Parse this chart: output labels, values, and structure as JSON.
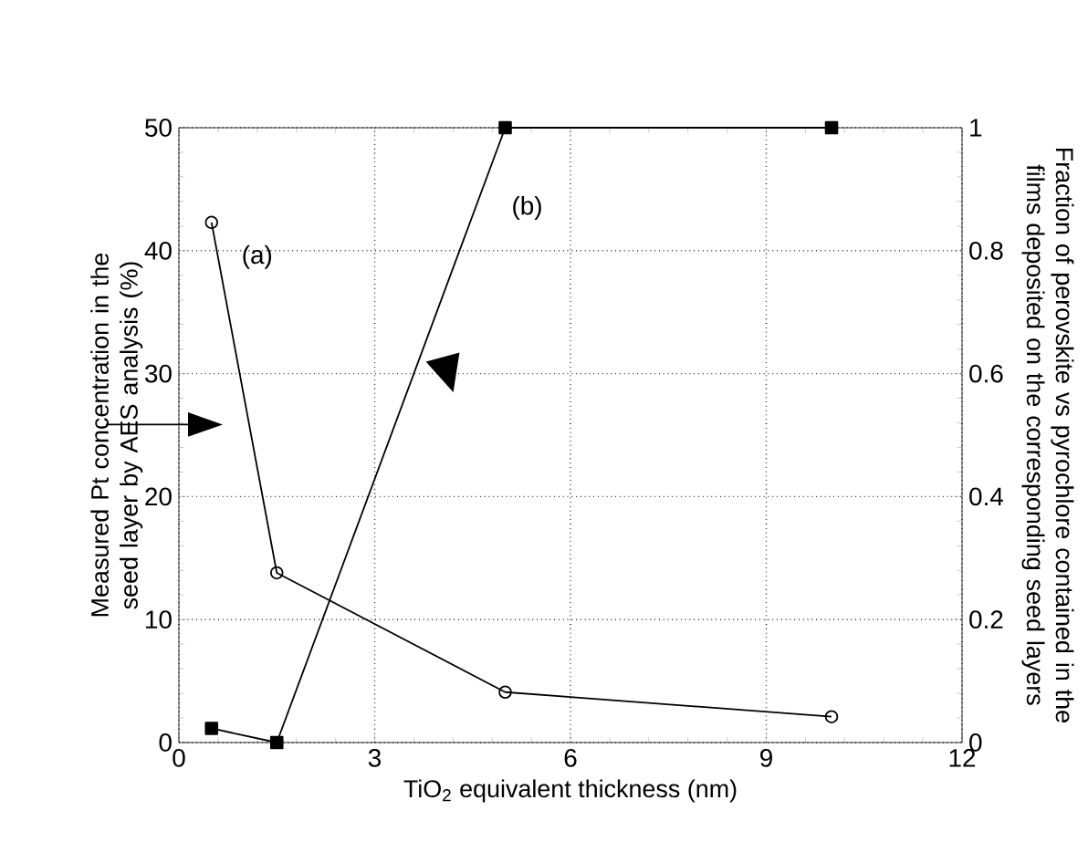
{
  "chart_data": {
    "type": "line",
    "xlabel": "TiO$_{2}$ equivalent thickness (nm)",
    "ylabel": "Measured Pt concentration in the seed layer by AES analysis (%)",
    "y2label": "Fraction of perovskite vs pyrochlore contained in the films deposited on the corresponding seed layers",
    "xlim": [
      0,
      12
    ],
    "xticks": [
      0,
      3,
      6,
      9,
      12
    ],
    "ylim": [
      0,
      50
    ],
    "yticks": [
      0,
      10,
      20,
      30,
      40,
      50
    ],
    "y2lim": [
      0,
      1
    ],
    "y2ticks": [
      0,
      0.2,
      0.4,
      0.6,
      0.8,
      1
    ],
    "grid": true,
    "line_style": "solid",
    "series": [
      {
        "name": "(a)",
        "color": "#000000",
        "marker": "circle",
        "x": [
          0.5,
          1.5,
          5,
          10
        ],
        "values": [
          42.3,
          13.8,
          4.1,
          2.1
        ]
      },
      {
        "name": "(b)",
        "color": "#000000",
        "marker": "square",
        "axis": "y2",
        "x": [
          0.5,
          1.5,
          5,
          10
        ],
        "values": [
          0.023,
          0,
          1,
          1
        ]
      }
    ]
  }
}
